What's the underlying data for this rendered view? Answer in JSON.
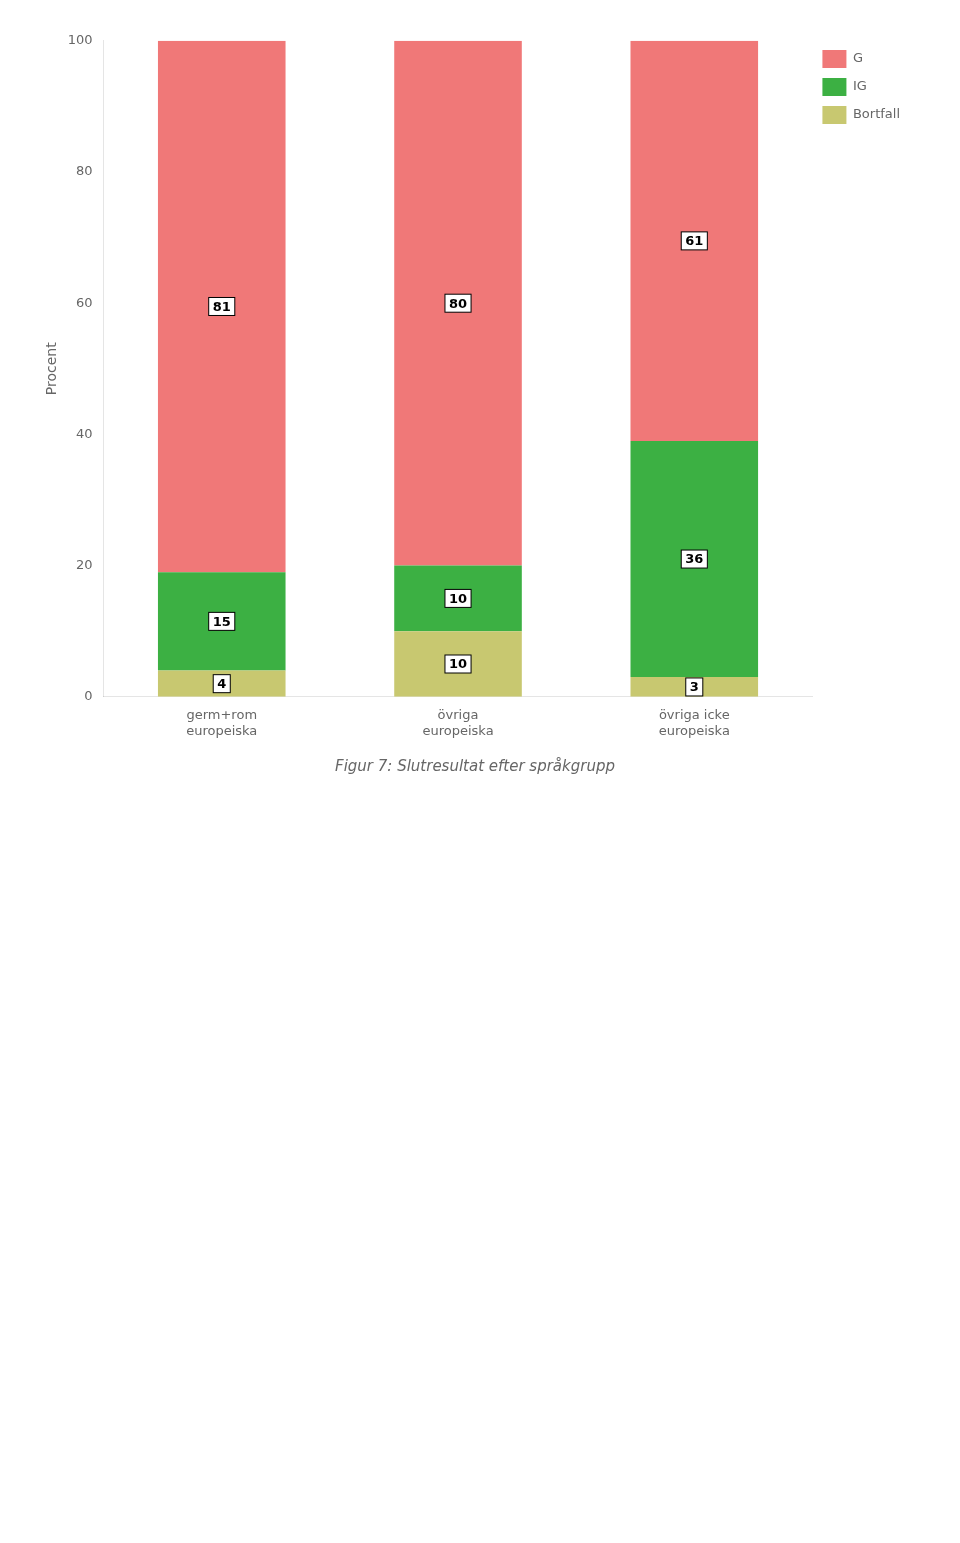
{
  "chart_data": {
    "type": "bar",
    "title": "Figur 7: Slutresultat efter språkgrupp",
    "categories": [
      "germ+rom\neuropeiska",
      "övriga\neuropeiska",
      "övriga icke\neuropeiska"
    ],
    "series": [
      {
        "name": "Bortfall",
        "color": "#C8C870",
        "values": [
          4,
          10,
          3
        ]
      },
      {
        "name": "IG",
        "color": "#3CB043",
        "values": [
          15,
          10,
          36
        ]
      },
      {
        "name": "G",
        "color": "#F07878",
        "values": [
          81,
          80,
          61
        ]
      }
    ],
    "ylabel": "Procent",
    "ylim": [
      0,
      100
    ],
    "yticks": [
      0,
      20,
      40,
      60,
      80,
      100
    ],
    "stacked": true,
    "data_labels": true,
    "grid": false,
    "legend": "right"
  }
}
